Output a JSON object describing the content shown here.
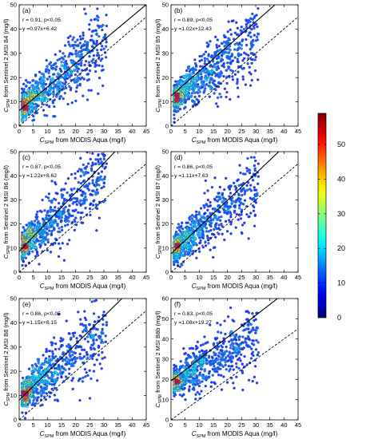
{
  "chart_data": [
    {
      "type": "scatter",
      "panel_label": "(a)",
      "stats_line": "r = 0.91, p<0.05",
      "fit_line": "y =0.97x+6.42",
      "ylabel_main": "C",
      "ylabel_sub": "SPM",
      "ylabel_rest": " from Sentinel 2 MSI B4 (mg/l)",
      "xlabel_main": "C",
      "xlabel_sub": "SPM",
      "xlabel_rest": " from MODIS Aqua (mg/l)",
      "xlim": [
        0,
        45
      ],
      "ylim": [
        0,
        50
      ],
      "xticks": [
        "0",
        "5",
        "10",
        "15",
        "20",
        "25",
        "30",
        "35",
        "40",
        "45"
      ],
      "yticks": [
        "0",
        "10",
        "20",
        "30",
        "40",
        "50"
      ],
      "regression": {
        "slope": 0.97,
        "intercept": 6.42
      },
      "one_to_one_line": true,
      "scatter_model": {
        "x_range": [
          1,
          31
        ],
        "slope": 0.97,
        "intercept": 6.42,
        "y_spread": 5.5,
        "n_points": 750
      }
    },
    {
      "type": "scatter",
      "panel_label": "(b)",
      "stats_line": "r = 0.89, p<0.05",
      "fit_line": "y =1.02x+12.43",
      "ylabel_main": "C",
      "ylabel_sub": "SPM",
      "ylabel_rest": " from Sentinel 2 MSI B5 (mg/l)",
      "xlabel_main": "C",
      "xlabel_sub": "SPM",
      "xlabel_rest": " from MODIS Aqua (mg/l)",
      "xlim": [
        0,
        45
      ],
      "ylim": [
        0,
        50
      ],
      "xticks": [
        "0",
        "5",
        "10",
        "15",
        "20",
        "25",
        "30",
        "35",
        "40",
        "45"
      ],
      "yticks": [
        "0",
        "10",
        "20",
        "30",
        "40",
        "50"
      ],
      "regression": {
        "slope": 1.02,
        "intercept": 12.43
      },
      "one_to_one_line": true,
      "scatter_model": {
        "x_range": [
          1,
          31
        ],
        "slope": 0.85,
        "intercept": 10.5,
        "y_spread": 5.5,
        "n_points": 750
      }
    },
    {
      "type": "scatter",
      "panel_label": "(c)",
      "stats_line": "r = 0.87, p<0.05",
      "fit_line": "y =1.22x+8.62",
      "ylabel_main": "C",
      "ylabel_sub": "SPM",
      "ylabel_rest": " from Sentinel 2 MSI B6 (mg/l)",
      "xlabel_main": "C",
      "xlabel_sub": "SPM",
      "xlabel_rest": " from MODIS Aqua (mg/l)",
      "xlim": [
        0,
        45
      ],
      "ylim": [
        0,
        50
      ],
      "xticks": [
        "0",
        "5",
        "10",
        "15",
        "20",
        "25",
        "30",
        "35",
        "40",
        "45"
      ],
      "yticks": [
        "0",
        "10",
        "20",
        "30",
        "40",
        "50"
      ],
      "regression": {
        "slope": 1.22,
        "intercept": 8.62
      },
      "one_to_one_line": true,
      "scatter_model": {
        "x_range": [
          1,
          31
        ],
        "slope": 1.0,
        "intercept": 9.5,
        "y_spread": 6.0,
        "n_points": 750
      }
    },
    {
      "type": "scatter",
      "panel_label": "(d)",
      "stats_line": "r = 0.86, p<0.05",
      "fit_line": "y =1.11x+7.63",
      "ylabel_main": "C",
      "ylabel_sub": "SPM",
      "ylabel_rest": " from Sentinel 2 MSI B7 (mg/l)",
      "xlabel_main": "C",
      "xlabel_sub": "SPM",
      "xlabel_rest": " from MODIS Aqua (mg/l)",
      "xlim": [
        0,
        45
      ],
      "ylim": [
        0,
        50
      ],
      "xticks": [
        "0",
        "5",
        "10",
        "15",
        "20",
        "25",
        "30",
        "35",
        "40",
        "45"
      ],
      "yticks": [
        "0",
        "10",
        "20",
        "30",
        "40",
        "50"
      ],
      "regression": {
        "slope": 1.11,
        "intercept": 7.63
      },
      "one_to_one_line": true,
      "scatter_model": {
        "x_range": [
          1,
          31
        ],
        "slope": 0.95,
        "intercept": 8.5,
        "y_spread": 5.5,
        "n_points": 750
      }
    },
    {
      "type": "scatter",
      "panel_label": "(e)",
      "stats_line": "r = 0.86, p<0.05",
      "fit_line": "y =1.15x+8.15",
      "ylabel_main": "C",
      "ylabel_sub": "SPM",
      "ylabel_rest": " from Sentinel 2 MSI B8 (mg/l)",
      "xlabel_main": "C",
      "xlabel_sub": "SPM",
      "xlabel_rest": " from MODIS Aqua (mg/l)",
      "xlim": [
        0,
        45
      ],
      "ylim": [
        0,
        50
      ],
      "xticks": [
        "0",
        "5",
        "10",
        "15",
        "20",
        "25",
        "30",
        "35",
        "40",
        "45"
      ],
      "yticks": [
        "0",
        "10",
        "20",
        "30",
        "40",
        "50"
      ],
      "regression": {
        "slope": 1.15,
        "intercept": 8.15
      },
      "one_to_one_line": true,
      "scatter_model": {
        "x_range": [
          1,
          31
        ],
        "slope": 0.95,
        "intercept": 9.0,
        "y_spread": 5.8,
        "n_points": 750
      }
    },
    {
      "type": "scatter",
      "panel_label": "(f)",
      "stats_line": "r = 0.83, p<0.05",
      "fit_line": "y =1.08x+19.27",
      "ylabel_main": "C",
      "ylabel_sub": "SPM",
      "ylabel_rest": " from Sentinel 2 MSI B8b (mg/l)",
      "xlabel_main": "C",
      "xlabel_sub": "SPM",
      "xlabel_rest": " from MODIS Aqua (mg/l)",
      "xlim": [
        0,
        45
      ],
      "ylim": [
        0,
        60
      ],
      "xticks": [
        "0",
        "5",
        "10",
        "15",
        "20",
        "25",
        "30",
        "35",
        "40",
        "45"
      ],
      "yticks": [
        "0",
        "10",
        "20",
        "30",
        "40",
        "50",
        "60"
      ],
      "regression": {
        "slope": 1.08,
        "intercept": 19.27
      },
      "one_to_one_line": true,
      "scatter_model": {
        "x_range": [
          1,
          31
        ],
        "slope": 0.75,
        "intercept": 18.0,
        "y_spread": 6.5,
        "n_points": 750
      }
    }
  ],
  "colorbar": {
    "min": 0,
    "max": 59,
    "ticks": [
      "0",
      "10",
      "20",
      "30",
      "40",
      "50"
    ],
    "colormap": "jet",
    "colors": [
      "#00008f",
      "#0000ff",
      "#00ffff",
      "#ffff00",
      "#ff0000",
      "#800000"
    ]
  },
  "marker_outline_color": "#1f3fbf"
}
